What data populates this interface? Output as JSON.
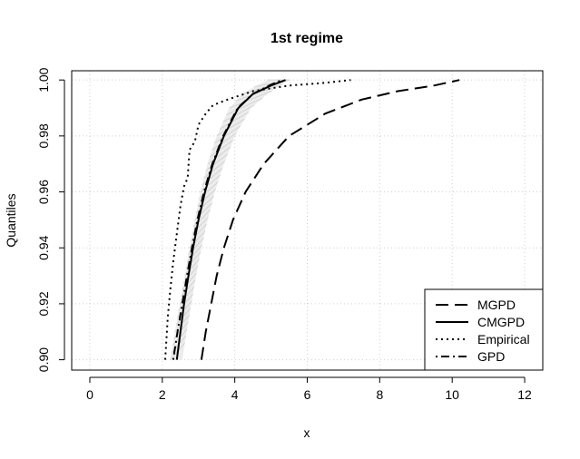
{
  "chart_data": {
    "type": "line",
    "title": "1st regime",
    "xlabel": "x",
    "ylabel": "Quantiles",
    "xlim": [
      -0.5,
      12.5
    ],
    "ylim": [
      0.8963,
      1.0033
    ],
    "xticks": [
      0,
      2,
      4,
      6,
      8,
      10,
      12
    ],
    "yticks": [
      0.9,
      0.92,
      0.94,
      0.96,
      0.98,
      1.0
    ],
    "grid": true,
    "legend_position": "bottom-right",
    "series": [
      {
        "name": "MGPD",
        "dash": "long-dash",
        "points": [
          [
            3.08,
            0.9
          ],
          [
            3.2,
            0.91
          ],
          [
            3.35,
            0.92
          ],
          [
            3.5,
            0.93
          ],
          [
            3.7,
            0.94
          ],
          [
            3.95,
            0.95
          ],
          [
            4.3,
            0.96
          ],
          [
            4.8,
            0.97
          ],
          [
            5.5,
            0.98
          ],
          [
            6.5,
            0.988
          ],
          [
            7.5,
            0.993
          ],
          [
            8.5,
            0.996
          ],
          [
            9.5,
            0.998
          ],
          [
            10.2,
            1.0
          ]
        ]
      },
      {
        "name": "CMGPD",
        "dash": "solid",
        "points": [
          [
            2.4,
            0.9
          ],
          [
            2.5,
            0.91
          ],
          [
            2.6,
            0.92
          ],
          [
            2.72,
            0.93
          ],
          [
            2.85,
            0.94
          ],
          [
            3.0,
            0.95
          ],
          [
            3.18,
            0.96
          ],
          [
            3.4,
            0.97
          ],
          [
            3.7,
            0.98
          ],
          [
            4.1,
            0.99
          ],
          [
            4.5,
            0.995
          ],
          [
            5.0,
            0.998
          ],
          [
            5.4,
            1.0
          ]
        ]
      },
      {
        "name": "Empirical",
        "dash": "dotted",
        "points": [
          [
            2.08,
            0.9
          ],
          [
            2.15,
            0.915
          ],
          [
            2.22,
            0.925
          ],
          [
            2.3,
            0.935
          ],
          [
            2.4,
            0.945
          ],
          [
            2.5,
            0.955
          ],
          [
            2.6,
            0.962
          ],
          [
            2.7,
            0.965
          ],
          [
            2.75,
            0.975
          ],
          [
            2.9,
            0.978
          ],
          [
            3.0,
            0.984
          ],
          [
            3.2,
            0.988
          ],
          [
            3.4,
            0.991
          ],
          [
            3.8,
            0.993
          ],
          [
            4.5,
            0.996
          ],
          [
            5.5,
            0.998
          ],
          [
            6.5,
            0.999
          ],
          [
            7.2,
            1.0
          ]
        ]
      },
      {
        "name": "GPD",
        "dash": "dash-dot",
        "points": [
          [
            2.3,
            0.9
          ],
          [
            2.42,
            0.91
          ],
          [
            2.55,
            0.92
          ],
          [
            2.68,
            0.93
          ],
          [
            2.82,
            0.94
          ],
          [
            2.97,
            0.95
          ],
          [
            3.15,
            0.96
          ],
          [
            3.38,
            0.97
          ],
          [
            3.68,
            0.98
          ],
          [
            4.08,
            0.99
          ],
          [
            4.5,
            0.995
          ],
          [
            4.95,
            0.998
          ],
          [
            5.3,
            1.0
          ]
        ]
      }
    ],
    "band": {
      "color": "#d3d3d3",
      "lower": [
        [
          2.22,
          0.9
        ],
        [
          2.35,
          0.91
        ],
        [
          2.48,
          0.92
        ],
        [
          2.62,
          0.93
        ],
        [
          2.75,
          0.94
        ],
        [
          2.9,
          0.95
        ],
        [
          3.05,
          0.96
        ],
        [
          3.25,
          0.97
        ],
        [
          3.5,
          0.98
        ],
        [
          3.85,
          0.99
        ],
        [
          4.2,
          0.995
        ],
        [
          4.6,
          0.998
        ],
        [
          4.9,
          1.0
        ]
      ],
      "upper": [
        [
          2.55,
          0.9
        ],
        [
          2.67,
          0.91
        ],
        [
          2.8,
          0.92
        ],
        [
          2.93,
          0.93
        ],
        [
          3.08,
          0.94
        ],
        [
          3.25,
          0.95
        ],
        [
          3.45,
          0.96
        ],
        [
          3.7,
          0.97
        ],
        [
          4.0,
          0.98
        ],
        [
          4.45,
          0.99
        ],
        [
          4.9,
          0.995
        ],
        [
          5.25,
          0.998
        ],
        [
          5.5,
          1.0
        ]
      ]
    }
  }
}
